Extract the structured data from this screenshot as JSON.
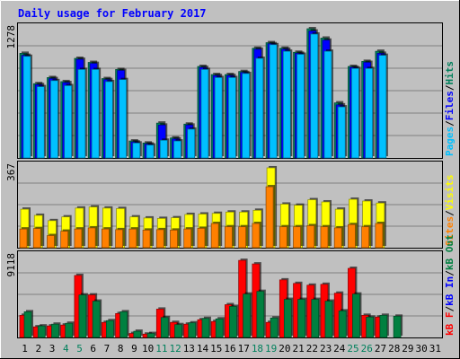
{
  "title": "Daily usage for February 2017",
  "colors": {
    "background": "#c0c0c0",
    "grid": "#808080",
    "hits_front": "#00805c",
    "files_front": "#0000ff",
    "pages_front": "#00c0ff",
    "visits_front": "#ffff00",
    "sites_front": "#ff8000",
    "kbin_front": "#008040",
    "kbf_front": "#ff0000",
    "weekend_label": "#00805c",
    "weekday_label": "#000000"
  },
  "chart_data": [
    {
      "type": "bar",
      "name": "hits-files-pages",
      "ymax_label": "1278",
      "ylim": [
        0,
        1278
      ],
      "legend": [
        {
          "text": "Pages",
          "color": "#00c0ff"
        },
        {
          "text": "/",
          "color": "#000000"
        },
        {
          "text": "Files",
          "color": "#0000ff"
        },
        {
          "text": "/",
          "color": "#000000"
        },
        {
          "text": "Hits",
          "color": "#00805c"
        }
      ],
      "categories": [
        "1",
        "2",
        "3",
        "4",
        "5",
        "6",
        "7",
        "8",
        "9",
        "10",
        "11",
        "12",
        "13",
        "14",
        "15",
        "16",
        "17",
        "18",
        "19",
        "20",
        "21",
        "22",
        "23",
        "24",
        "25",
        "26",
        "27",
        "28",
        "29",
        "30",
        "31"
      ],
      "series": [
        {
          "name": "Hits",
          "values": [
            1035,
            735,
            795,
            755,
            985,
            945,
            785,
            875,
            168,
            148,
            345,
            198,
            335,
            905,
            825,
            825,
            855,
            1085,
            1140,
            1085,
            1045,
            1278,
            1185,
            545,
            905,
            955,
            1055,
            null,
            null,
            null,
            null
          ]
        },
        {
          "name": "Files",
          "values": [
            1015,
            725,
            785,
            745,
            975,
            935,
            775,
            865,
            158,
            138,
            325,
            188,
            325,
            895,
            815,
            815,
            845,
            1075,
            1130,
            1075,
            1035,
            1255,
            1165,
            525,
            895,
            945,
            1035,
            null,
            null,
            null,
            null
          ]
        },
        {
          "name": "Pages",
          "values": [
            1005,
            705,
            765,
            715,
            875,
            875,
            755,
            775,
            148,
            128,
            175,
            168,
            285,
            875,
            795,
            795,
            835,
            985,
            1120,
            1055,
            1025,
            1225,
            1055,
            505,
            885,
            885,
            1015,
            null,
            null,
            null,
            null
          ]
        }
      ]
    },
    {
      "type": "bar",
      "name": "visits-sites",
      "ymax_label": "367",
      "ylim": [
        0,
        367
      ],
      "legend": [
        {
          "text": "Sites",
          "color": "#ff8000"
        },
        {
          "text": "/",
          "color": "#000000"
        },
        {
          "text": "Visits",
          "color": "#ffff00"
        }
      ],
      "categories": [
        "1",
        "2",
        "3",
        "4",
        "5",
        "6",
        "7",
        "8",
        "9",
        "10",
        "11",
        "12",
        "13",
        "14",
        "15",
        "16",
        "17",
        "18",
        "19",
        "20",
        "21",
        "22",
        "23",
        "24",
        "25",
        "26",
        "27",
        "28",
        "29",
        "30",
        "31"
      ],
      "series": [
        {
          "name": "Visits",
          "values": [
            175,
            147,
            123,
            140,
            180,
            185,
            180,
            178,
            140,
            135,
            133,
            136,
            151,
            153,
            156,
            162,
            162,
            170,
            363,
            198,
            193,
            218,
            208,
            175,
            220,
            212,
            203,
            null,
            null,
            null,
            null
          ]
        },
        {
          "name": "Sites",
          "values": [
            85,
            87,
            55,
            75,
            85,
            90,
            85,
            82,
            85,
            80,
            82,
            80,
            85,
            88,
            110,
            95,
            95,
            110,
            277,
            95,
            95,
            100,
            95,
            90,
            105,
            95,
            110,
            null,
            null,
            null,
            null
          ]
        }
      ]
    },
    {
      "type": "bar",
      "name": "kbf-kbin-kbout",
      "ymax_label": "9118",
      "ylim": [
        0,
        9118
      ],
      "legend": [
        {
          "text": "kB F",
          "color": "#ff0000"
        },
        {
          "text": "/",
          "color": "#000000"
        },
        {
          "text": "kB In",
          "color": "#0000ff"
        },
        {
          "text": "/",
          "color": "#000000"
        },
        {
          "text": "kB Out",
          "color": "#008040"
        }
      ],
      "categories": [
        "1",
        "2",
        "3",
        "4",
        "5",
        "6",
        "7",
        "8",
        "9",
        "10",
        "11",
        "12",
        "13",
        "14",
        "15",
        "16",
        "17",
        "18",
        "19",
        "20",
        "21",
        "22",
        "23",
        "24",
        "25",
        "26",
        "27",
        "28",
        "29",
        "30",
        "31"
      ],
      "series": [
        {
          "name": "kB F",
          "values": [
            2500,
            1200,
            1300,
            1400,
            7000,
            4800,
            1700,
            2700,
            450,
            380,
            3200,
            1700,
            1500,
            2000,
            1800,
            3700,
            8700,
            8300,
            1700,
            6500,
            6100,
            5900,
            6000,
            5000,
            7800,
            2500,
            2300,
            null,
            null,
            null,
            null
          ]
        },
        {
          "name": "kB Out",
          "values": [
            2900,
            1300,
            1500,
            1600,
            4800,
            4100,
            1900,
            2900,
            700,
            450,
            2250,
            1450,
            1650,
            2150,
            2100,
            3500,
            4900,
            5200,
            2200,
            4300,
            4300,
            4300,
            4100,
            3000,
            4900,
            2300,
            2500,
            2400,
            null,
            null,
            null
          ]
        }
      ]
    }
  ],
  "x_labels": [
    {
      "text": "1",
      "weekend": false
    },
    {
      "text": "2",
      "weekend": false
    },
    {
      "text": "3",
      "weekend": false
    },
    {
      "text": "4",
      "weekend": true
    },
    {
      "text": "5",
      "weekend": true
    },
    {
      "text": "6",
      "weekend": false
    },
    {
      "text": "7",
      "weekend": false
    },
    {
      "text": "8",
      "weekend": false
    },
    {
      "text": "9",
      "weekend": false
    },
    {
      "text": "10",
      "weekend": false
    },
    {
      "text": "11",
      "weekend": true
    },
    {
      "text": "12",
      "weekend": true
    },
    {
      "text": "13",
      "weekend": false
    },
    {
      "text": "14",
      "weekend": false
    },
    {
      "text": "15",
      "weekend": false
    },
    {
      "text": "16",
      "weekend": false
    },
    {
      "text": "17",
      "weekend": false
    },
    {
      "text": "18",
      "weekend": true
    },
    {
      "text": "19",
      "weekend": true
    },
    {
      "text": "20",
      "weekend": false
    },
    {
      "text": "21",
      "weekend": false
    },
    {
      "text": "22",
      "weekend": false
    },
    {
      "text": "23",
      "weekend": false
    },
    {
      "text": "24",
      "weekend": false
    },
    {
      "text": "25",
      "weekend": true
    },
    {
      "text": "26",
      "weekend": true
    },
    {
      "text": "27",
      "weekend": false
    },
    {
      "text": "28",
      "weekend": false
    },
    {
      "text": "29",
      "weekend": false
    },
    {
      "text": "30",
      "weekend": false
    },
    {
      "text": "31",
      "weekend": false
    }
  ]
}
